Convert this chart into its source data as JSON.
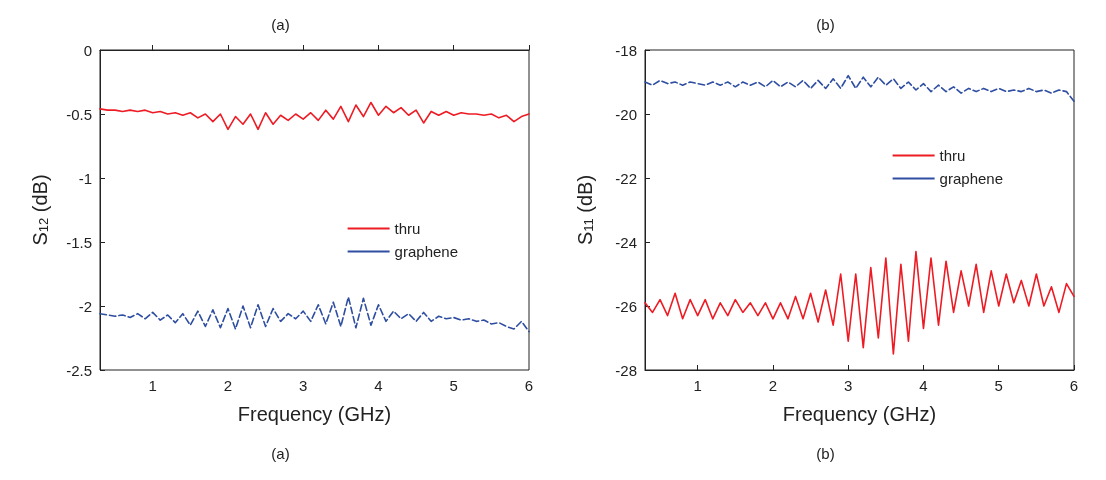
{
  "chart_data": [
    {
      "type": "line",
      "title": "(a)",
      "xlabel": "Frequency (GHz)",
      "ylabel": "S$_{12}$ (dB)",
      "annotations": [
        "(a)"
      ],
      "x": [
        0.3,
        0.4,
        0.5,
        0.6,
        0.7,
        0.8,
        0.9,
        1.0,
        1.1,
        1.2,
        1.3,
        1.4,
        1.5,
        1.6,
        1.7,
        1.8,
        1.9,
        2.0,
        2.1,
        2.2,
        2.3,
        2.4,
        2.5,
        2.6,
        2.7,
        2.8,
        2.9,
        3.0,
        3.1,
        3.2,
        3.3,
        3.4,
        3.5,
        3.6,
        3.7,
        3.8,
        3.9,
        4.0,
        4.1,
        4.2,
        4.3,
        4.4,
        4.5,
        4.6,
        4.7,
        4.8,
        4.9,
        5.0,
        5.1,
        5.2,
        5.3,
        5.4,
        5.5,
        5.6,
        5.7,
        5.8,
        5.9,
        6.0
      ],
      "series": [
        {
          "name": "thru",
          "color": "#ed1c24",
          "line_style": "solid",
          "values": [
            -0.46,
            -0.47,
            -0.47,
            -0.48,
            -0.47,
            -0.48,
            -0.47,
            -0.49,
            -0.48,
            -0.5,
            -0.49,
            -0.51,
            -0.49,
            -0.53,
            -0.5,
            -0.56,
            -0.5,
            -0.62,
            -0.52,
            -0.58,
            -0.5,
            -0.62,
            -0.49,
            -0.58,
            -0.51,
            -0.55,
            -0.5,
            -0.54,
            -0.49,
            -0.55,
            -0.47,
            -0.54,
            -0.44,
            -0.56,
            -0.43,
            -0.52,
            -0.41,
            -0.51,
            -0.44,
            -0.49,
            -0.45,
            -0.51,
            -0.47,
            -0.57,
            -0.48,
            -0.51,
            -0.48,
            -0.51,
            -0.49,
            -0.5,
            -0.5,
            -0.51,
            -0.5,
            -0.53,
            -0.51,
            -0.56,
            -0.52,
            -0.5
          ]
        },
        {
          "name": "graphene",
          "color": "#2e4ea1",
          "line_style": "dashed",
          "values": [
            -2.06,
            -2.07,
            -2.08,
            -2.07,
            -2.09,
            -2.06,
            -2.1,
            -2.05,
            -2.11,
            -2.07,
            -2.13,
            -2.06,
            -2.15,
            -2.04,
            -2.16,
            -2.03,
            -2.17,
            -2.02,
            -2.18,
            -2.0,
            -2.17,
            -1.99,
            -2.16,
            -2.02,
            -2.12,
            -2.06,
            -2.1,
            -2.04,
            -2.12,
            -1.99,
            -2.14,
            -1.97,
            -2.16,
            -1.93,
            -2.17,
            -1.94,
            -2.15,
            -1.99,
            -2.12,
            -2.04,
            -2.1,
            -2.06,
            -2.12,
            -2.05,
            -2.12,
            -2.08,
            -2.1,
            -2.09,
            -2.11,
            -2.1,
            -2.12,
            -2.11,
            -2.14,
            -2.13,
            -2.16,
            -2.18,
            -2.12,
            -2.2
          ]
        }
      ],
      "xlim": [
        0.3,
        6
      ],
      "xticks": [
        1,
        2,
        3,
        4,
        5,
        6
      ],
      "ylim": [
        -2.5,
        0
      ],
      "yticks": [
        -2.5,
        -2,
        -1.5,
        -1,
        -0.5,
        0
      ],
      "grid": false,
      "legend": "right",
      "marker": "none"
    },
    {
      "type": "line",
      "title": "(b)",
      "xlabel": "Frequency (GHz)",
      "ylabel": "S$_{11}$ (dB)",
      "annotations": [
        "(b)"
      ],
      "x": [
        0.3,
        0.4,
        0.5,
        0.6,
        0.7,
        0.8,
        0.9,
        1.0,
        1.1,
        1.2,
        1.3,
        1.4,
        1.5,
        1.6,
        1.7,
        1.8,
        1.9,
        2.0,
        2.1,
        2.2,
        2.3,
        2.4,
        2.5,
        2.6,
        2.7,
        2.8,
        2.9,
        3.0,
        3.1,
        3.2,
        3.3,
        3.4,
        3.5,
        3.6,
        3.7,
        3.8,
        3.9,
        4.0,
        4.1,
        4.2,
        4.3,
        4.4,
        4.5,
        4.6,
        4.7,
        4.8,
        4.9,
        5.0,
        5.1,
        5.2,
        5.3,
        5.4,
        5.5,
        5.6,
        5.7,
        5.8,
        5.9,
        6.0
      ],
      "series": [
        {
          "name": "thru",
          "color": "#ed1c24",
          "line_style": "solid",
          "values": [
            -25.9,
            -26.2,
            -25.8,
            -26.3,
            -25.6,
            -26.4,
            -25.8,
            -26.3,
            -25.8,
            -26.4,
            -25.9,
            -26.3,
            -25.8,
            -26.2,
            -25.9,
            -26.3,
            -25.9,
            -26.4,
            -25.9,
            -26.4,
            -25.7,
            -26.4,
            -25.6,
            -26.5,
            -25.5,
            -26.6,
            -25.0,
            -27.1,
            -25.0,
            -27.3,
            -24.8,
            -27.0,
            -24.5,
            -27.5,
            -24.7,
            -27.1,
            -24.3,
            -26.7,
            -24.5,
            -26.6,
            -24.6,
            -26.2,
            -24.9,
            -26.0,
            -24.7,
            -26.2,
            -24.9,
            -26.0,
            -25.0,
            -25.9,
            -25.2,
            -26.0,
            -25.0,
            -26.0,
            -25.4,
            -26.2,
            -25.3,
            -25.7
          ]
        },
        {
          "name": "graphene",
          "color": "#2e4ea1",
          "line_style": "dashed",
          "values": [
            -19.0,
            -19.1,
            -18.95,
            -19.05,
            -19.0,
            -19.1,
            -19.0,
            -19.05,
            -19.1,
            -19.0,
            -19.1,
            -19.0,
            -19.15,
            -19.0,
            -19.1,
            -19.0,
            -19.15,
            -18.95,
            -19.15,
            -19.0,
            -19.15,
            -18.95,
            -19.2,
            -18.95,
            -19.2,
            -18.9,
            -19.2,
            -18.8,
            -19.2,
            -18.85,
            -19.15,
            -18.85,
            -19.1,
            -18.9,
            -19.2,
            -19.0,
            -19.25,
            -19.05,
            -19.3,
            -19.1,
            -19.3,
            -19.15,
            -19.35,
            -19.2,
            -19.3,
            -19.2,
            -19.3,
            -19.2,
            -19.3,
            -19.25,
            -19.3,
            -19.2,
            -19.3,
            -19.25,
            -19.35,
            -19.25,
            -19.3,
            -19.6
          ]
        }
      ],
      "xlim": [
        0.3,
        6
      ],
      "xticks": [
        1,
        2,
        3,
        4,
        5,
        6
      ],
      "ylim": [
        -28,
        -18
      ],
      "yticks": [
        -28,
        -26,
        -24,
        -22,
        -20,
        -18
      ],
      "grid": false,
      "legend": "top right",
      "marker": "none"
    }
  ]
}
